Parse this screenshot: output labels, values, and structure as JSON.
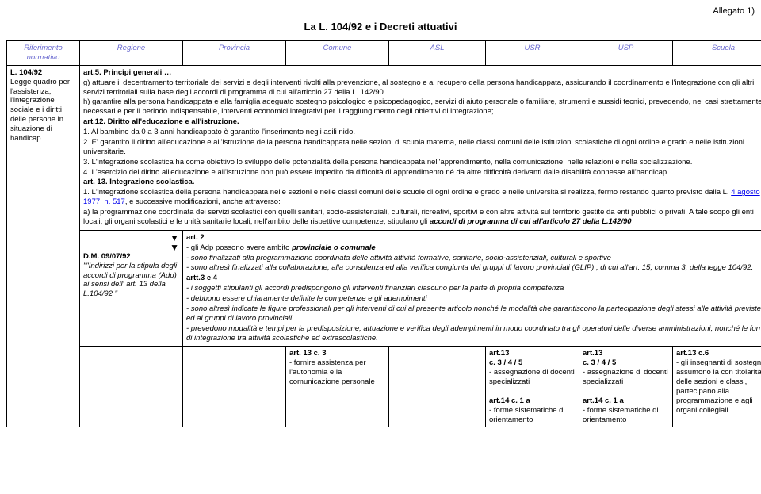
{
  "allegato": "Allegato 1)",
  "title": "La L. 104/92 e i Decreti attuativi",
  "left_header": "Riferimento normativo",
  "cols": {
    "regione": "Regione",
    "provincia": "Provincia",
    "comune": "Comune",
    "asl": "ASL",
    "usr": "USR",
    "usp": "USP",
    "scuola": "Scuola"
  },
  "left_block": {
    "law": "L. 104/92",
    "desc": "Legge quadro per l'assistenza, l'integrazione sociale e i diritti delle persone in situazione di handicap"
  },
  "body": {
    "art5_title": "art.5. Principi generali …",
    "g_prefix": "g) attuare il decentramento territoriale dei servizi e degli interventi rivolti alla prevenzione, al sostegno e al recupero della persona handicappata, assicurando il coordinamento e l'integrazione con gli altri servizi territoriali sulla base degli accordi di programma di cui all'articolo 27 della L. 142/90",
    "h": "h) garantire alla persona handicappata e alla famiglia adeguato sostegno psicologico e psicopedagogico, servizi di aiuto personale o familiare, strumenti e sussidi tecnici, prevedendo, nei casi strettamente necessari e per il periodo indispensabile, interventi economici integrativi per il raggiungimento degli obiettivi di integrazione;",
    "art12_title": "art.12. Diritto all'educazione e all'istruzione.",
    "p1": "1. Al bambino da 0 a 3 anni handicappato è garantito l'inserimento negli asili nido.",
    "p2": "2. E' garantito il diritto all'educazione e all'istruzione della persona handicappata nelle sezioni di scuola materna, nelle classi comuni delle istituzioni scolastiche di ogni ordine e grado e nelle istituzioni universitarie.",
    "p3": "3. L'integrazione scolastica ha come obiettivo lo sviluppo delle potenzialità della persona handicappata nell'apprendimento, nella comunicazione, nelle relazioni e nella socializzazione.",
    "p4": "4. L'esercizio del diritto all'educazione e all'istruzione non può essere impedito da difficoltà di apprendimento né da altre difficoltà derivanti dalle disabilità connesse all'handicap.",
    "art13_title": "art. 13. Integrazione scolastica.",
    "p13_1a": "1. L'integrazione scolastica della persona handicappata nelle sezioni e nelle classi comuni delle scuole di ogni ordine e grado e nelle università si realizza, fermo restando quanto previsto dalla L.",
    "link": "4 agosto 1977, n. 517",
    "p13_1b": ", e successive modificazioni, anche attraverso:",
    "a_line": "a) la programmazione coordinata dei servizi scolastici con quelli sanitari, socio-assistenziali, culturali, ricreativi, sportivi e con altre attività sul territorio gestite da enti pubblici o privati. A tale scopo gli enti locali, gli organi scolastici e le unità sanitarie locali, nell'ambito delle rispettive competenze, stipulano gli",
    "a_bold": "accordi di programma di cui all'articolo 27 della L.142/90"
  },
  "dm": {
    "title": "D.M. 09/07/92",
    "desc": "\"\"Indirizzi per la stipula degli accordi di programma (Adp) ai sensi dell' art. 13 della L.104/92 \""
  },
  "art2": {
    "title": "art. 2",
    "l1": "- gli Adp possono avere ambito",
    "l1b": "provinciale o comunale",
    "l2": "- sono finalizzati alla programmazione coordinata delle attività attività formative, sanitarie, socio-assistenziali, culturali e sportive",
    "l3": "- sono altresì finalizzati alla collaborazione, alla consulenza ed alla verifica congiunta dei gruppi di lavoro provinciali (GLIP) , di cui all'art. 15, comma 3, della legge 104/92.",
    "artt34": "artt.3 e 4",
    "l4": "- i soggetti stipulanti gli accordi predispongono gli interventi finanziari ciascuno per la parte di propria competenza",
    "l5": "- debbono essere chiaramente definite le competenze e gli adempimenti",
    "l6": "- sono altresì indicate le figure professionali per gli interventi di cui al presente articolo nonché le modalità che garantiscono la partecipazione degli stessi alle attività previste ed ai gruppi di lavoro provinciali",
    "l7": "- prevedono modalità e tempi per la predisposizione, attuazione e verifica degli adempimenti in modo coordinato tra gli operatori delle diverse amministrazioni, nonché le forme di integrazione tra attività scolastiche ed extrascolastiche."
  },
  "row3": {
    "comune": {
      "t": "art. 13 c. 3",
      "d": "- fornire assistenza per l'autonomia e la comunicazione personale"
    },
    "usr": {
      "t1": "art.13",
      "t2": "c. 3 / 4 / 5",
      "d1": "- assegnazione di docenti specializzati",
      "t3": "art.14 c. 1 a",
      "d2": "- forme sistematiche di orientamento"
    },
    "usp": {
      "t1": "art.13",
      "t2": "c. 3 / 4 / 5",
      "d1": "- assegnazione di docenti specializzati",
      "t3": "art.14 c. 1 a",
      "d2": "- forme sistematiche di orientamento"
    },
    "scuola": {
      "t": "art.13 c.6",
      "d": "- gli insegnanti di sostegno assumono la con titolarità delle sezioni e classi, partecipano alla programmazione e agli organi collegiali"
    }
  }
}
